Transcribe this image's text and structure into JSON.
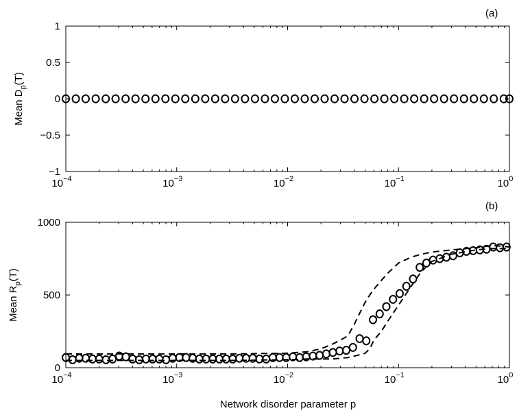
{
  "chart_data": [
    {
      "type": "scatter",
      "panel_label": "(a)",
      "ylabel_main": "Mean D",
      "ylabel_sub": "p",
      "ylabel_tail": "(T)",
      "xscale": "log",
      "xlim": [
        0.0001,
        1
      ],
      "ylim": [
        -1,
        1
      ],
      "x_ticks": [
        {
          "base": "10",
          "exp": "−4"
        },
        {
          "base": "10",
          "exp": "−3"
        },
        {
          "base": "10",
          "exp": "−2"
        },
        {
          "base": "10",
          "exp": "−1"
        },
        {
          "base": "10",
          "exp": "0"
        }
      ],
      "y_ticks": [
        "1",
        "0.5",
        "0",
        "−0.5",
        "−1"
      ],
      "series": [
        {
          "marker": "open-circle",
          "x": [
            0.0001,
            0.000123,
            0.000151,
            0.000186,
            0.000229,
            0.000281,
            0.000346,
            0.000425,
            0.000523,
            0.000643,
            0.000791,
            0.000972,
            0.001195,
            0.00147,
            0.001807,
            0.002222,
            0.002732,
            0.003359,
            0.00413,
            0.005078,
            0.006244,
            0.007677,
            0.009439,
            0.011605,
            0.014269,
            0.017545,
            0.021572,
            0.026524,
            0.032613,
            0.040099,
            0.049304,
            0.060622,
            0.074538,
            0.091648,
            0.112685,
            0.138551,
            0.170356,
            0.209461,
            0.257542,
            0.316662,
            0.389353,
            0.478728,
            0.58862,
            0.723741,
            0.889883,
            1.0
          ],
          "y": [
            0,
            0,
            0,
            0,
            0,
            0,
            0,
            0,
            0,
            0,
            0,
            0,
            0,
            0,
            0,
            0,
            0,
            0,
            0,
            0,
            0,
            0,
            0,
            0,
            0,
            0,
            0,
            0,
            0,
            0,
            0,
            0,
            0,
            0,
            0,
            0,
            0,
            0,
            0,
            0,
            0,
            0,
            0,
            0,
            0,
            0
          ]
        }
      ]
    },
    {
      "type": "scatter",
      "panel_label": "(b)",
      "ylabel_main": "Mean R",
      "ylabel_sub": "p",
      "ylabel_tail": "(T)",
      "xlabel": "Network disorder parameter p",
      "xscale": "log",
      "xlim": [
        0.0001,
        1
      ],
      "ylim": [
        0,
        1000
      ],
      "x_ticks": [
        {
          "base": "10",
          "exp": "−4"
        },
        {
          "base": "10",
          "exp": "−3"
        },
        {
          "base": "10",
          "exp": "−2"
        },
        {
          "base": "10",
          "exp": "−1"
        },
        {
          "base": "10",
          "exp": "0"
        }
      ],
      "y_ticks": [
        "1000",
        "500",
        "0"
      ],
      "series": [
        {
          "marker": "open-circle",
          "x": [
            0.0001,
            0.000115,
            0.000132,
            0.000151,
            0.000174,
            0.0002,
            0.00023,
            0.000264,
            0.000303,
            0.000348,
            0.0004,
            0.000459,
            0.000528,
            0.000606,
            0.000696,
            0.0008,
            0.000919,
            0.001056,
            0.001213,
            0.001393,
            0.0016,
            0.001838,
            0.002112,
            0.002426,
            0.002787,
            0.003202,
            0.003678,
            0.004225,
            0.004853,
            0.005575,
            0.006404,
            0.007356,
            0.00845,
            0.009707,
            0.011151,
            0.012809,
            0.014714,
            0.016902,
            0.019415,
            0.022302,
            0.025619,
            0.029429,
            0.033805,
            0.038832,
            0.044607,
            0.05124,
            0.05886,
            0.067614,
            0.077669,
            0.089219,
            0.102487,
            0.117727,
            0.135234,
            0.155345,
            0.178446,
            0.204982,
            0.235465,
            0.270481,
            0.310704,
            0.356908,
            0.409984,
            0.470953,
            0.540988,
            0.621438,
            0.713852,
            0.820009,
            0.941952
          ],
          "y": [
            70,
            55,
            65,
            65,
            60,
            60,
            55,
            60,
            80,
            75,
            60,
            55,
            60,
            60,
            60,
            55,
            65,
            70,
            70,
            65,
            60,
            60,
            60,
            60,
            60,
            60,
            65,
            65,
            65,
            60,
            60,
            70,
            70,
            70,
            75,
            70,
            75,
            80,
            85,
            95,
            105,
            115,
            120,
            140,
            200,
            185,
            330,
            370,
            420,
            470,
            510,
            560,
            610,
            690,
            720,
            740,
            750,
            760,
            770,
            790,
            800,
            805,
            810,
            815,
            830,
            825,
            830
          ]
        },
        {
          "name": "upper",
          "style": "dashed",
          "x": [
            0.0001,
            0.0003,
            0.001,
            0.003,
            0.01,
            0.015,
            0.02,
            0.025,
            0.03,
            0.035,
            0.04,
            0.045,
            0.05,
            0.055,
            0.06,
            0.07,
            0.08,
            0.1,
            0.13,
            0.16,
            0.2,
            0.3,
            0.5,
            0.7,
            1.0
          ],
          "y": [
            95,
            95,
            95,
            95,
            100,
            110,
            130,
            160,
            190,
            220,
            300,
            380,
            450,
            500,
            540,
            600,
            650,
            720,
            760,
            780,
            795,
            810,
            825,
            840,
            830
          ]
        },
        {
          "name": "lower",
          "style": "dashed",
          "x": [
            0.0001,
            0.0003,
            0.001,
            0.003,
            0.01,
            0.015,
            0.02,
            0.025,
            0.03,
            0.035,
            0.04,
            0.045,
            0.05,
            0.055,
            0.06,
            0.07,
            0.08,
            0.1,
            0.13,
            0.16,
            0.2,
            0.3,
            0.5,
            0.7,
            1.0
          ],
          "y": [
            50,
            50,
            50,
            50,
            55,
            60,
            60,
            60,
            65,
            70,
            80,
            90,
            100,
            130,
            190,
            250,
            320,
            430,
            560,
            660,
            730,
            780,
            810,
            820,
            820
          ]
        }
      ]
    }
  ]
}
